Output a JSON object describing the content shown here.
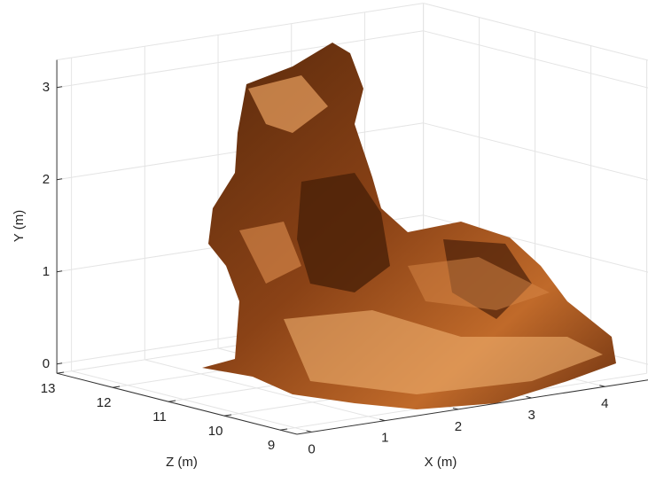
{
  "chart_data": {
    "type": "surface3d",
    "xlabel": "X (m)",
    "ylabel": "Y (m)",
    "zlabel": "Z (m)",
    "xlim": [
      -0.2,
      4.8
    ],
    "xticks": [
      0,
      1,
      2,
      3,
      4
    ],
    "ylim": [
      -0.1,
      3.3
    ],
    "yticks": [
      0,
      1,
      2,
      3
    ],
    "zlim": [
      8.7,
      13
    ],
    "zticks": [
      9,
      10,
      11,
      12,
      13
    ],
    "grid": true
  }
}
